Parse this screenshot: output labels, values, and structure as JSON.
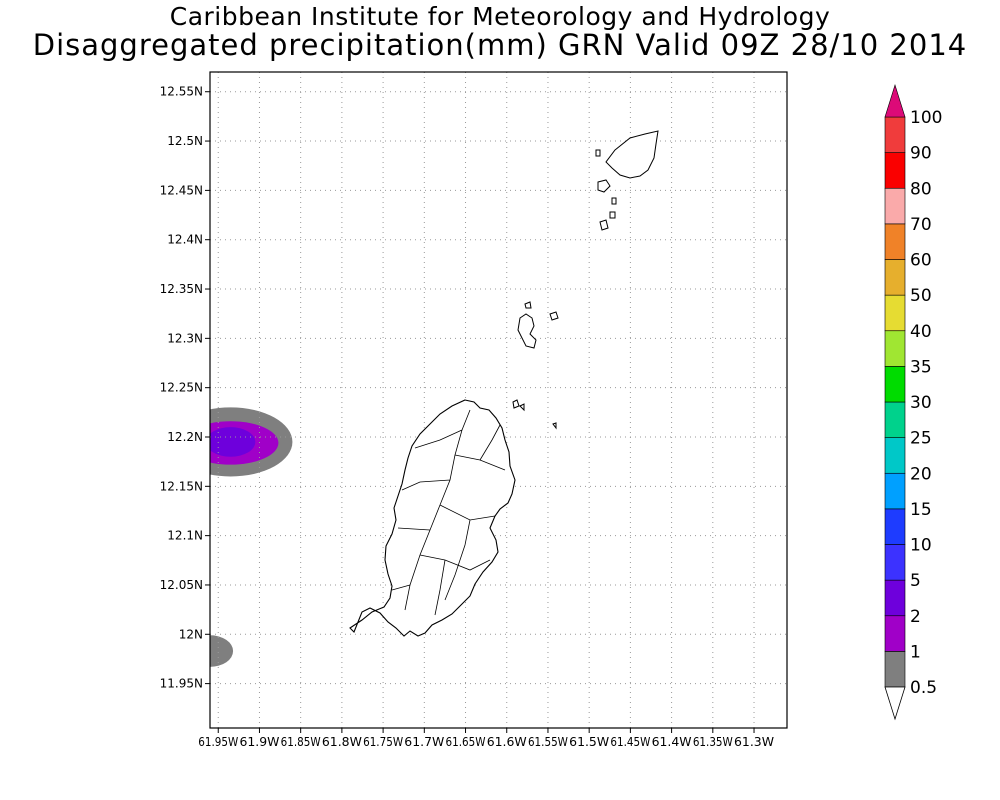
{
  "titles": {
    "line1": "Caribbean Institute for Meteorology and Hydrology",
    "line2": "Disaggregated precipitation(mm) GRN Valid 09Z 28/10 2014"
  },
  "map": {
    "lon_range": [
      -61.96,
      -61.26
    ],
    "lat_range": [
      11.905,
      12.57
    ],
    "grid": true,
    "lon_ticks": [
      {
        "value": -61.95,
        "label": "61.95W"
      },
      {
        "value": -61.9,
        "label": "61.9W"
      },
      {
        "value": -61.85,
        "label": "61.85W"
      },
      {
        "value": -61.8,
        "label": "61.8W"
      },
      {
        "value": -61.75,
        "label": "61.75W"
      },
      {
        "value": -61.7,
        "label": "61.7W"
      },
      {
        "value": -61.65,
        "label": "61.65W"
      },
      {
        "value": -61.6,
        "label": "61.6W"
      },
      {
        "value": -61.55,
        "label": "61.55W"
      },
      {
        "value": -61.5,
        "label": "61.5W"
      },
      {
        "value": -61.45,
        "label": "61.45W"
      },
      {
        "value": -61.4,
        "label": "61.4W"
      },
      {
        "value": -61.35,
        "label": "61.35W"
      },
      {
        "value": -61.3,
        "label": "61.3W"
      }
    ],
    "lat_ticks": [
      {
        "value": 12.55,
        "label": "12.55N"
      },
      {
        "value": 12.5,
        "label": "12.5N"
      },
      {
        "value": 12.45,
        "label": "12.45N"
      },
      {
        "value": 12.4,
        "label": "12.4N"
      },
      {
        "value": 12.35,
        "label": "12.35N"
      },
      {
        "value": 12.3,
        "label": "12.3N"
      },
      {
        "value": 12.25,
        "label": "12.25N"
      },
      {
        "value": 12.2,
        "label": "12.2N"
      },
      {
        "value": 12.15,
        "label": "12.15N"
      },
      {
        "value": 12.1,
        "label": "12.1N"
      },
      {
        "value": 12.05,
        "label": "12.05N"
      },
      {
        "value": 12.0,
        "label": "12N"
      },
      {
        "value": 11.95,
        "label": "11.95N"
      }
    ]
  },
  "precip_areas": [
    {
      "center_lon": -61.935,
      "center_lat": 12.195,
      "extent_lon": 0.075,
      "extent_lat": 0.035,
      "category": "1",
      "color": "#7f7f7f"
    },
    {
      "center_lon": -61.935,
      "center_lat": 12.194,
      "extent_lon": 0.058,
      "extent_lat": 0.022,
      "category": "2",
      "color": "#a000c8"
    },
    {
      "center_lon": -61.935,
      "center_lat": 12.195,
      "extent_lon": 0.03,
      "extent_lat": 0.015,
      "category": "5",
      "color": "#6e00dc"
    },
    {
      "center_lon": -61.96,
      "center_lat": 11.983,
      "extent_lon": 0.028,
      "extent_lat": 0.016,
      "category": "1",
      "color": "#7f7f7f"
    }
  ],
  "colorbar": {
    "levels": [
      {
        "label": "0.5",
        "color": "#ffffff"
      },
      {
        "label": "1",
        "color": "#7f7f7f"
      },
      {
        "label": "2",
        "color": "#a000c8"
      },
      {
        "label": "5",
        "color": "#6e00dc"
      },
      {
        "label": "10",
        "color": "#3c32ff"
      },
      {
        "label": "15",
        "color": "#1e3cff"
      },
      {
        "label": "20",
        "color": "#00a0ff"
      },
      {
        "label": "25",
        "color": "#00c8c8"
      },
      {
        "label": "30",
        "color": "#00d28c"
      },
      {
        "label": "35",
        "color": "#00dc00"
      },
      {
        "label": "40",
        "color": "#a0e632"
      },
      {
        "label": "50",
        "color": "#e6dc32"
      },
      {
        "label": "60",
        "color": "#e6af2d"
      },
      {
        "label": "70",
        "color": "#f08228"
      },
      {
        "label": "80",
        "color": "#faaaaa"
      },
      {
        "label": "90",
        "color": "#fa0000"
      },
      {
        "label": "100",
        "color": "#f03c3c"
      }
    ],
    "top_arrow_color": "#dc0a78",
    "bottom_arrow_color": "#ffffff"
  }
}
